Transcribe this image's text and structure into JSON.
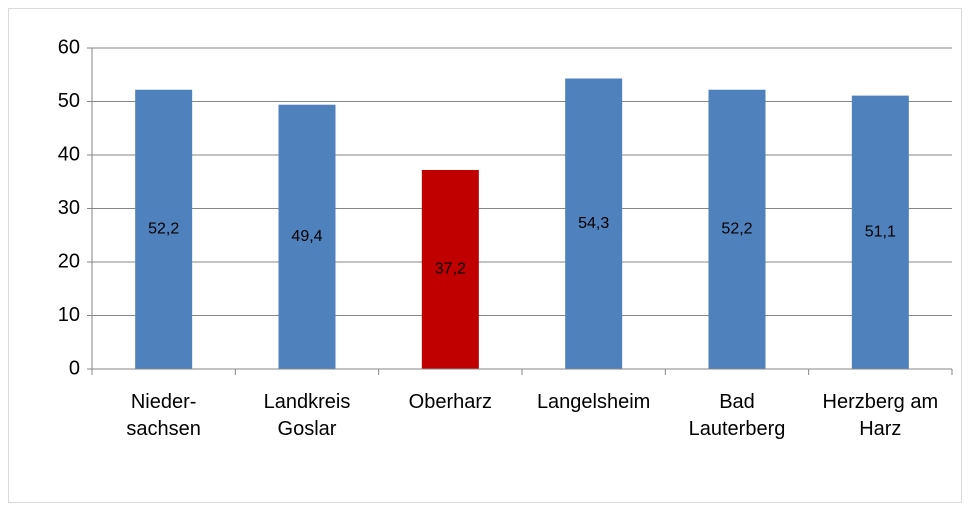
{
  "chart_data": {
    "type": "bar",
    "categories": [
      "Nieder-\nsachsen",
      "Landkreis\nGoslar",
      "Oberharz",
      "Langelsheim",
      "Bad\nLauterberg",
      "Herzberg am\nHarz"
    ],
    "values": [
      52.2,
      49.4,
      37.2,
      54.3,
      52.2,
      51.1
    ],
    "value_labels": [
      "52,2",
      "49,4",
      "37,2",
      "54,3",
      "52,2",
      "51,1"
    ],
    "colors": [
      "#4f81bd",
      "#4f81bd",
      "#c00000",
      "#4f81bd",
      "#4f81bd",
      "#4f81bd"
    ],
    "ylim": [
      0,
      60
    ],
    "yticks": [
      0,
      10,
      20,
      30,
      40,
      50,
      60
    ],
    "grid": true
  }
}
